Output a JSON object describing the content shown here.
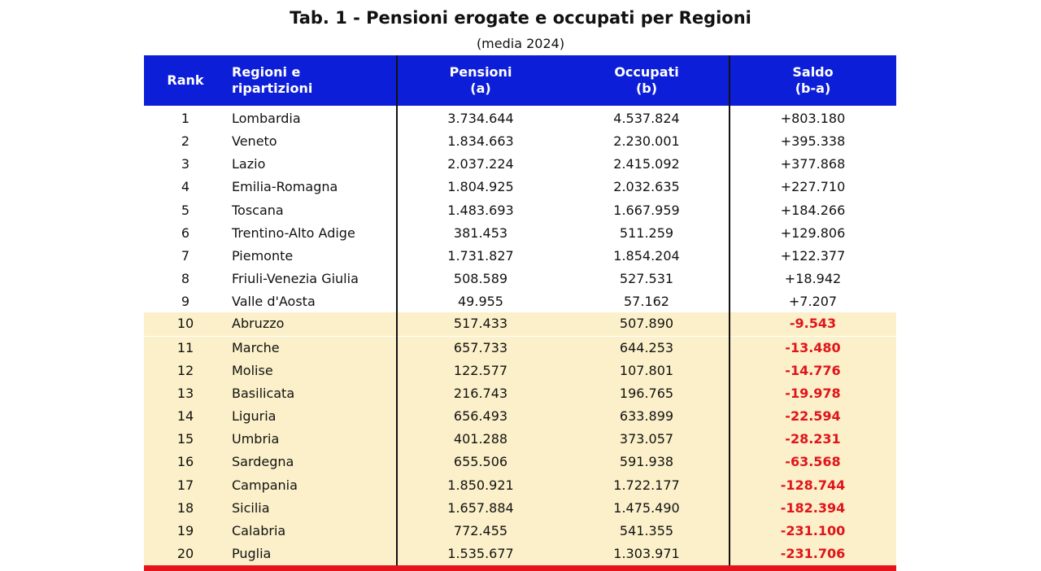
{
  "title": "Tab. 1 - Pensioni erogate e occupati per Regioni",
  "subtitle": "(media 2024)",
  "table": {
    "header": [
      [
        "Rank"
      ],
      [
        "Regioni e",
        "ripartizioni"
      ],
      [
        "Pensioni",
        "(a)"
      ],
      [
        "Occupati",
        "(b)"
      ],
      [
        "Saldo",
        "(b-a)"
      ]
    ],
    "rows": [
      [
        "1",
        "Lombardia",
        "3.734.644",
        "4.537.824",
        "+803.180"
      ],
      [
        "2",
        "Veneto",
        "1.834.663",
        "2.230.001",
        "+395.338"
      ],
      [
        "3",
        "Lazio",
        "2.037.224",
        "2.415.092",
        "+377.868"
      ],
      [
        "4",
        "Emilia-Romagna",
        "1.804.925",
        "2.032.635",
        "+227.710"
      ],
      [
        "5",
        "Toscana",
        "1.483.693",
        "1.667.959",
        "+184.266"
      ],
      [
        "6",
        "Trentino-Alto Adige",
        "381.453",
        "511.259",
        "+129.806"
      ],
      [
        "7",
        "Piemonte",
        "1.731.827",
        "1.854.204",
        "+122.377"
      ],
      [
        "8",
        "Friuli-Venezia Giulia",
        "508.589",
        "527.531",
        "+18.942"
      ],
      [
        "9",
        "Valle d'Aosta",
        "49.955",
        "57.162",
        "+7.207"
      ],
      [
        "10",
        "Abruzzo",
        "517.433",
        "507.890",
        "-9.543"
      ],
      [
        "11",
        "Marche",
        "657.733",
        "644.253",
        "-13.480"
      ],
      [
        "12",
        "Molise",
        "122.577",
        "107.801",
        "-14.776"
      ],
      [
        "13",
        "Basilicata",
        "216.743",
        "196.765",
        "-19.978"
      ],
      [
        "14",
        "Liguria",
        "656.493",
        "633.899",
        "-22.594"
      ],
      [
        "15",
        "Umbria",
        "401.288",
        "373.057",
        "-28.231"
      ],
      [
        "16",
        "Sardegna",
        "655.506",
        "591.938",
        "-63.568"
      ],
      [
        "17",
        "Campania",
        "1.850.921",
        "1.722.177",
        "-128.744"
      ],
      [
        "18",
        "Sicilia",
        "1.657.884",
        "1.475.490",
        "-182.394"
      ],
      [
        "19",
        "Calabria",
        "772.455",
        "541.355",
        "-231.100"
      ],
      [
        "20",
        "Puglia",
        "1.535.677",
        "1.303.971",
        "-231.706"
      ]
    ]
  }
}
